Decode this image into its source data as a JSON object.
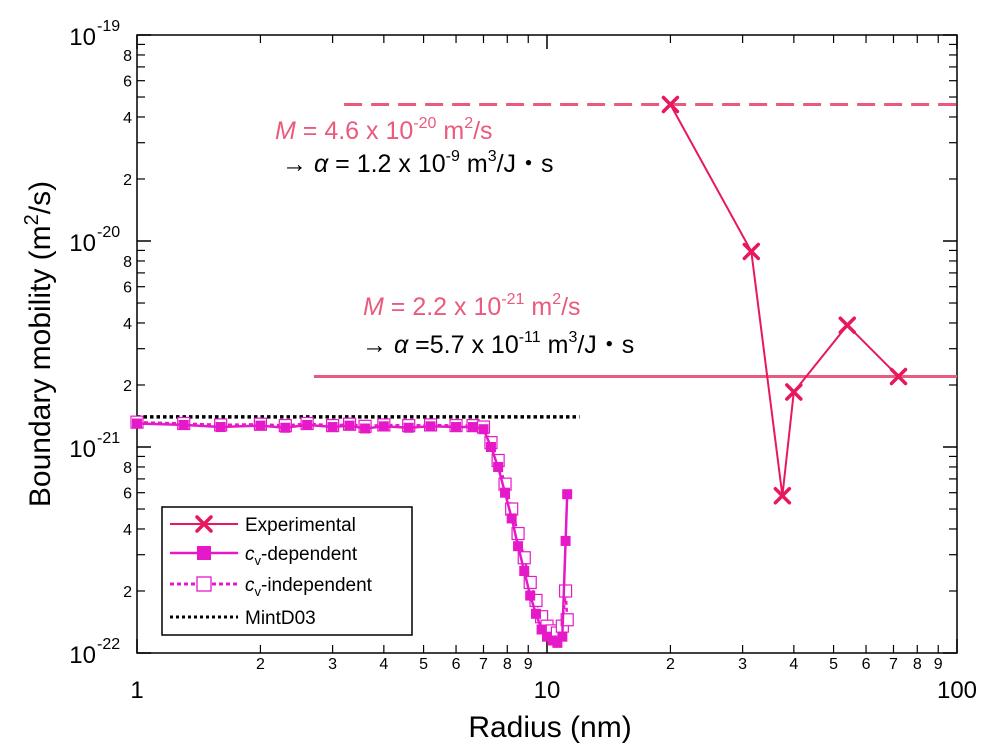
{
  "chart_data": {
    "type": "line",
    "xlabel": "Radius (nm)",
    "ylabel": "Boundary mobility (m",
    "ylabel_sup": "2",
    "ylabel_tail": "/s)",
    "xscale": "log",
    "yscale": "log",
    "xlim": [
      1,
      100
    ],
    "ylim": [
      1e-22,
      1e-19
    ],
    "x_major_ticks": [
      {
        "v": 1,
        "label": "1"
      },
      {
        "v": 10,
        "label": "10"
      },
      {
        "v": 100,
        "label": "100"
      }
    ],
    "x_minor_ticks": [
      {
        "v": 2,
        "label": "2"
      },
      {
        "v": 3,
        "label": "3"
      },
      {
        "v": 4,
        "label": "4"
      },
      {
        "v": 5,
        "label": "5"
      },
      {
        "v": 6,
        "label": "6"
      },
      {
        "v": 7,
        "label": "7"
      },
      {
        "v": 8,
        "label": "8"
      },
      {
        "v": 9,
        "label": "9"
      },
      {
        "v": 20,
        "label": "2"
      },
      {
        "v": 30,
        "label": "3"
      },
      {
        "v": 40,
        "label": "4"
      },
      {
        "v": 50,
        "label": "5"
      },
      {
        "v": 60,
        "label": "6"
      },
      {
        "v": 70,
        "label": "7"
      },
      {
        "v": 80,
        "label": "8"
      },
      {
        "v": 90,
        "label": "9"
      }
    ],
    "y_major_ticks": [
      {
        "v": 1e-22,
        "base": "10",
        "exp": "-22"
      },
      {
        "v": 1e-21,
        "base": "10",
        "exp": "-21"
      },
      {
        "v": 1e-20,
        "base": "10",
        "exp": "-20"
      },
      {
        "v": 1e-19,
        "base": "10",
        "exp": "-19"
      }
    ],
    "y_minor_ticks": [
      {
        "v": 2e-22,
        "label": "2"
      },
      {
        "v": 4e-22,
        "label": "4"
      },
      {
        "v": 6e-22,
        "label": "6"
      },
      {
        "v": 8e-22,
        "label": "8"
      },
      {
        "v": 2e-21,
        "label": "2"
      },
      {
        "v": 4e-21,
        "label": "4"
      },
      {
        "v": 6e-21,
        "label": "6"
      },
      {
        "v": 8e-21,
        "label": "8"
      },
      {
        "v": 2e-20,
        "label": "2"
      },
      {
        "v": 4e-20,
        "label": "4"
      },
      {
        "v": 6e-20,
        "label": "6"
      },
      {
        "v": 8e-20,
        "label": "8"
      }
    ],
    "y_minor_unlabeled": [
      3e-22,
      5e-22,
      7e-22,
      9e-22,
      3e-21,
      5e-21,
      7e-21,
      9e-21,
      3e-20,
      5e-20,
      7e-20,
      9e-20
    ],
    "colors": {
      "experimental": "#e8185f",
      "cv_dependent": "#e619c8",
      "cv_independent": "#e619c8",
      "mintd03": "#000000",
      "fit_line": "#ea5a7c",
      "fit_text": "#ea5a7c"
    },
    "series": [
      {
        "name": "Experimental",
        "style": "solid-x",
        "x": [
          20,
          31.5,
          37.5,
          40,
          54,
          72
        ],
        "y": [
          4.6e-20,
          8.9e-21,
          5.8e-22,
          1.85e-21,
          3.9e-21,
          2.2e-21
        ]
      },
      {
        "name_italic": "c",
        "name_sub": "v",
        "name_tail": "-dependent",
        "style": "solid-filled-square",
        "x": [
          1.0,
          1.3,
          1.6,
          2.0,
          2.3,
          2.6,
          3.0,
          3.3,
          3.6,
          4.0,
          4.6,
          5.2,
          6.0,
          6.6,
          7.0,
          7.3,
          7.6,
          7.9,
          8.2,
          8.5,
          8.8,
          9.1,
          9.4,
          9.7,
          10.0,
          10.3,
          10.6,
          10.9,
          11.1,
          11.2
        ],
        "y": [
          1.3e-21,
          1.28e-21,
          1.25e-21,
          1.27e-21,
          1.24e-21,
          1.28e-21,
          1.25e-21,
          1.27e-21,
          1.23e-21,
          1.26e-21,
          1.24e-21,
          1.26e-21,
          1.25e-21,
          1.25e-21,
          1.22e-21,
          1e-21,
          8e-22,
          6e-22,
          4.5e-22,
          3.3e-22,
          2.5e-22,
          1.9e-22,
          1.55e-22,
          1.3e-22,
          1.2e-22,
          1.15e-22,
          1.12e-22,
          1.2e-22,
          3.5e-22,
          5.9e-22
        ]
      },
      {
        "name_italic": "c",
        "name_sub": "v",
        "name_tail": "-independent",
        "style": "dashed-open-square",
        "x": [
          1.0,
          1.3,
          1.6,
          2.0,
          2.3,
          2.6,
          3.0,
          3.3,
          3.6,
          4.0,
          4.6,
          5.2,
          6.0,
          6.6,
          7.0,
          7.3,
          7.6,
          7.9,
          8.2,
          8.5,
          8.8,
          9.1,
          9.4,
          9.7,
          10.0,
          10.3,
          10.6,
          10.9,
          11.1,
          11.2
        ],
        "y": [
          1.32e-21,
          1.3e-21,
          1.28e-21,
          1.29e-21,
          1.27e-21,
          1.3e-21,
          1.27e-21,
          1.29e-21,
          1.26e-21,
          1.28e-21,
          1.27e-21,
          1.28e-21,
          1.27e-21,
          1.27e-21,
          1.25e-21,
          1.05e-21,
          8.6e-22,
          6.6e-22,
          5e-22,
          3.8e-22,
          2.9e-22,
          2.2e-22,
          1.8e-22,
          1.5e-22,
          1.35e-22,
          1.28e-22,
          1.25e-22,
          1.35e-22,
          2e-22,
          1.45e-22
        ]
      },
      {
        "name": "MintD03",
        "style": "dotted-black",
        "x": [
          1,
          12
        ],
        "y": [
          1.4e-21,
          1.4e-21
        ]
      }
    ],
    "reference_lines": [
      {
        "style": "dashed",
        "y": 4.6e-20,
        "x": [
          3.2,
          100
        ]
      },
      {
        "style": "solid",
        "y": 2.2e-21,
        "x": [
          2.7,
          100
        ]
      }
    ],
    "annotations": [
      {
        "line1_var": "M",
        "line1_value": " = 4.6 x 10",
        "line1_exp": "-20",
        "line1_unit": " m",
        "line1_unit_sup": "2",
        "line1_unit_tail": "/s",
        "line2_arrow": "→ ",
        "line2_var": "α",
        "line2_value": " = 1.2 x 10",
        "line2_exp": "-9",
        "line2_unit": " m",
        "line2_unit_sup": "3",
        "line2_unit_tail": "/J・s"
      },
      {
        "line1_var": "M",
        "line1_value": " =  2.2 x 10",
        "line1_exp": "-21",
        "line1_unit": " m",
        "line1_unit_sup": "2",
        "line1_unit_tail": "/s",
        "line2_arrow": "→  ",
        "line2_var": "α",
        "line2_value": " =5.7 x 10",
        "line2_exp": "-11",
        "line2_unit": " m",
        "line2_unit_sup": "3",
        "line2_unit_tail": "/J・s"
      }
    ],
    "legend": {
      "position": "bottom-left"
    }
  }
}
